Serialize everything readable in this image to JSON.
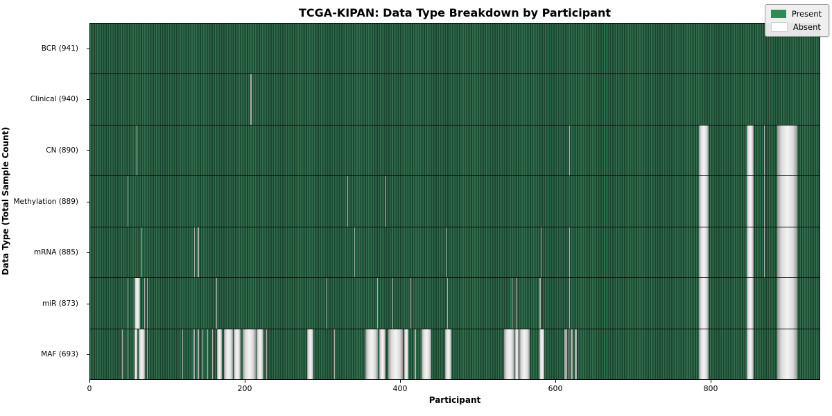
{
  "title": "TCGA-KIPAN: Data Type Breakdown by Participant",
  "x_axis": {
    "label": "Participant"
  },
  "y_axis": {
    "label": "Data Type (Total Sample Count)"
  },
  "legend": {
    "items": [
      {
        "label": "Present",
        "color": "#2e8b57"
      },
      {
        "label": "Absent",
        "color": "#ffffff"
      }
    ]
  },
  "chart_data": {
    "type": "heatmap",
    "title": "TCGA-KIPAN: Data Type Breakdown by Participant",
    "xlabel": "Participant",
    "ylabel": "Data Type (Total Sample Count)",
    "x_range": [
      0,
      941
    ],
    "x_ticks": [
      0,
      200,
      400,
      600,
      800
    ],
    "n_participants": 941,
    "grid": false,
    "legend_position": "upper right",
    "colors": {
      "present": "#2e8b57",
      "absent": "#ffffff"
    },
    "rows": [
      {
        "data_type": "BCR",
        "label": "BCR (941)",
        "total": 941,
        "absent_ranges": []
      },
      {
        "data_type": "Clinical",
        "label": "Clinical (940)",
        "total": 940,
        "absent_ranges": [
          [
            207,
            207
          ]
        ]
      },
      {
        "data_type": "CN",
        "label": "CN (890)",
        "total": 890,
        "absent_ranges": [
          [
            60,
            60
          ],
          [
            618,
            618
          ],
          [
            785,
            797
          ],
          [
            847,
            855
          ],
          [
            869,
            869
          ],
          [
            886,
            911
          ]
        ]
      },
      {
        "data_type": "Methylation",
        "label": "Methylation (889)",
        "total": 889,
        "absent_ranges": [
          [
            48,
            48
          ],
          [
            332,
            332
          ],
          [
            381,
            381
          ],
          [
            785,
            797
          ],
          [
            847,
            855
          ],
          [
            869,
            869
          ],
          [
            886,
            911
          ]
        ]
      },
      {
        "data_type": "mRNA",
        "label": "mRNA (885)",
        "total": 885,
        "absent_ranges": [
          [
            66,
            66
          ],
          [
            134,
            134
          ],
          [
            139,
            139
          ],
          [
            341,
            341
          ],
          [
            459,
            459
          ],
          [
            581,
            581
          ],
          [
            618,
            618
          ],
          [
            785,
            797
          ],
          [
            847,
            855
          ],
          [
            869,
            869
          ],
          [
            886,
            911
          ]
        ]
      },
      {
        "data_type": "miR",
        "label": "miR (873)",
        "total": 873,
        "absent_ranges": [
          [
            48,
            48
          ],
          [
            57,
            63
          ],
          [
            70,
            70
          ],
          [
            73,
            73
          ],
          [
            163,
            163
          ],
          [
            305,
            305
          ],
          [
            370,
            370
          ],
          [
            390,
            390
          ],
          [
            413,
            413
          ],
          [
            461,
            461
          ],
          [
            544,
            544
          ],
          [
            549,
            549
          ],
          [
            580,
            580
          ],
          [
            618,
            618
          ],
          [
            785,
            797
          ],
          [
            847,
            855
          ],
          [
            886,
            911
          ]
        ]
      },
      {
        "data_type": "MAF",
        "label": "MAF (693)",
        "total": 693,
        "absent_ranges": [
          [
            41,
            41
          ],
          [
            48,
            48
          ],
          [
            57,
            60
          ],
          [
            63,
            70
          ],
          [
            73,
            73
          ],
          [
            119,
            119
          ],
          [
            133,
            134
          ],
          [
            139,
            139
          ],
          [
            145,
            145
          ],
          [
            151,
            151
          ],
          [
            157,
            157
          ],
          [
            164,
            169
          ],
          [
            173,
            183
          ],
          [
            185,
            193
          ],
          [
            197,
            213
          ],
          [
            215,
            223
          ],
          [
            227,
            227
          ],
          [
            280,
            287
          ],
          [
            315,
            315
          ],
          [
            355,
            370
          ],
          [
            373,
            380
          ],
          [
            385,
            402
          ],
          [
            405,
            410
          ],
          [
            419,
            419
          ],
          [
            428,
            439
          ],
          [
            458,
            465
          ],
          [
            534,
            546
          ],
          [
            548,
            552
          ],
          [
            554,
            566
          ],
          [
            580,
            585
          ],
          [
            612,
            614
          ],
          [
            617,
            617
          ],
          [
            620,
            622
          ],
          [
            625,
            627
          ],
          [
            785,
            797
          ],
          [
            847,
            855
          ],
          [
            886,
            911
          ]
        ]
      }
    ]
  }
}
